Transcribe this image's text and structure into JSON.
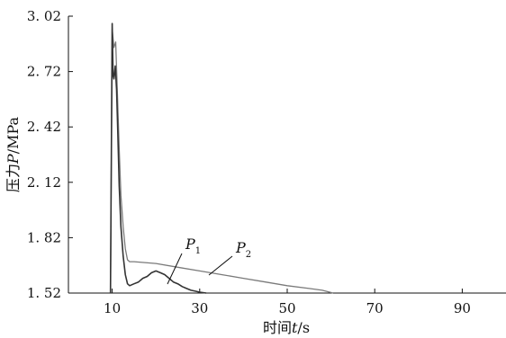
{
  "chart_data": {
    "type": "line",
    "xlabel": "时间t/s",
    "ylabel": "压力P/MPa",
    "xlabel_parts": [
      "时间",
      "t",
      "/s"
    ],
    "ylabel_parts": [
      "压力",
      "P",
      "/MPa"
    ],
    "xlim": [
      0,
      100
    ],
    "ylim": [
      1.52,
      3.02
    ],
    "x_ticks": [
      10,
      30,
      50,
      70,
      90
    ],
    "y_ticks": [
      1.52,
      1.82,
      2.12,
      2.42,
      2.72,
      3.02
    ],
    "x_tick_labels": [
      "10",
      "30",
      "50",
      "70",
      "90"
    ],
    "y_tick_labels": [
      "1. 52",
      "1. 82",
      "2. 12",
      "2. 42",
      "2. 72",
      "3. 02"
    ],
    "grid": false,
    "series": [
      {
        "name": "P1",
        "label_main": "P",
        "label_sub": "1",
        "color": "#333333",
        "x": [
          9.6,
          10.0,
          10.2,
          10.4,
          10.7,
          11.0,
          11.3,
          11.6,
          12.0,
          12.5,
          13.0,
          13.5,
          14.0,
          15.0,
          16.0,
          17.0,
          18.0,
          19.0,
          20.0,
          21.0,
          22.0,
          23.0,
          24.0,
          25.0,
          26.0,
          27.0,
          28.0,
          29.0,
          30.0,
          31.5
        ],
        "y": [
          1.52,
          2.98,
          2.7,
          2.68,
          2.75,
          2.62,
          2.38,
          2.1,
          1.88,
          1.72,
          1.62,
          1.57,
          1.56,
          1.57,
          1.58,
          1.6,
          1.61,
          1.63,
          1.64,
          1.63,
          1.62,
          1.6,
          1.58,
          1.57,
          1.555,
          1.545,
          1.535,
          1.53,
          1.525,
          1.52
        ]
      },
      {
        "name": "P2",
        "label_main": "P",
        "label_sub": "2",
        "color": "#7a7a7a",
        "x": [
          9.6,
          10.0,
          10.4,
          10.8,
          11.2,
          11.6,
          12.0,
          12.5,
          13.0,
          13.5,
          14.0,
          15.0,
          20.0,
          25.0,
          30.0,
          35.0,
          40.0,
          45.0,
          50.0,
          55.0,
          58.0,
          60.5
        ],
        "y": [
          1.52,
          2.95,
          2.85,
          2.88,
          2.6,
          2.3,
          2.05,
          1.88,
          1.76,
          1.7,
          1.69,
          1.69,
          1.68,
          1.66,
          1.64,
          1.62,
          1.6,
          1.58,
          1.56,
          1.545,
          1.535,
          1.52
        ]
      }
    ]
  }
}
